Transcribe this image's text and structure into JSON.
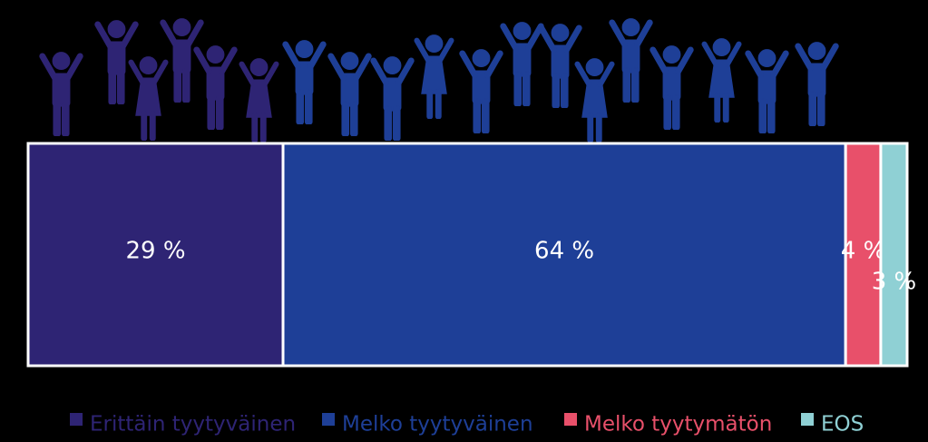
{
  "chart_data": {
    "type": "bar",
    "orientation": "horizontal",
    "stacked": true,
    "xlim": [
      0,
      100
    ],
    "series": [
      {
        "name": "Erittäin tyytyväinen",
        "color": "#2e2474",
        "values": [
          29
        ],
        "value_labels": [
          "29 %"
        ]
      },
      {
        "name": "Melko tyytyväinen",
        "color": "#1e3f97",
        "values": [
          64
        ],
        "value_labels": [
          "64 %"
        ]
      },
      {
        "name": "Melko tyytymätön",
        "color": "#e8506a",
        "values": [
          4
        ],
        "value_labels": [
          "4 %"
        ]
      },
      {
        "name": "EOS",
        "color": "#8fd0d4",
        "values": [
          3
        ],
        "value_labels": [
          "3 %"
        ]
      }
    ]
  }
}
